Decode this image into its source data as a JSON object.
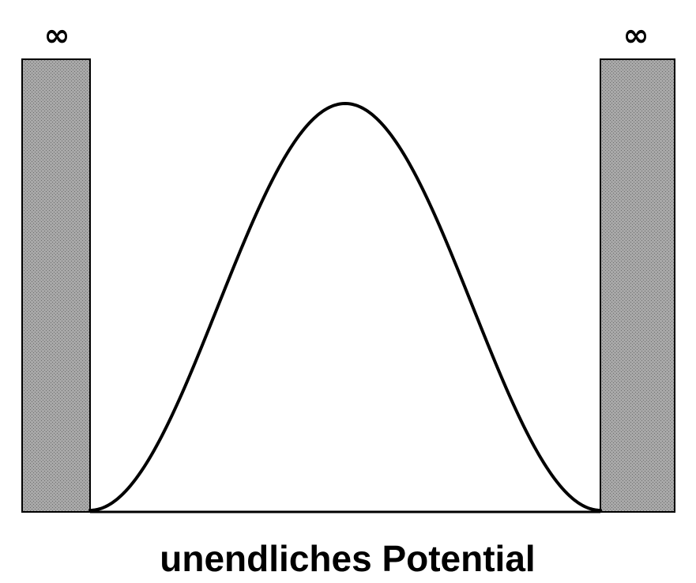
{
  "diagram": {
    "left_wall_label": "∞",
    "right_wall_label": "∞",
    "caption": "unendliches Potential",
    "wall_color": "#9a9a9a",
    "line_color": "#000000",
    "background": "#ffffff"
  }
}
